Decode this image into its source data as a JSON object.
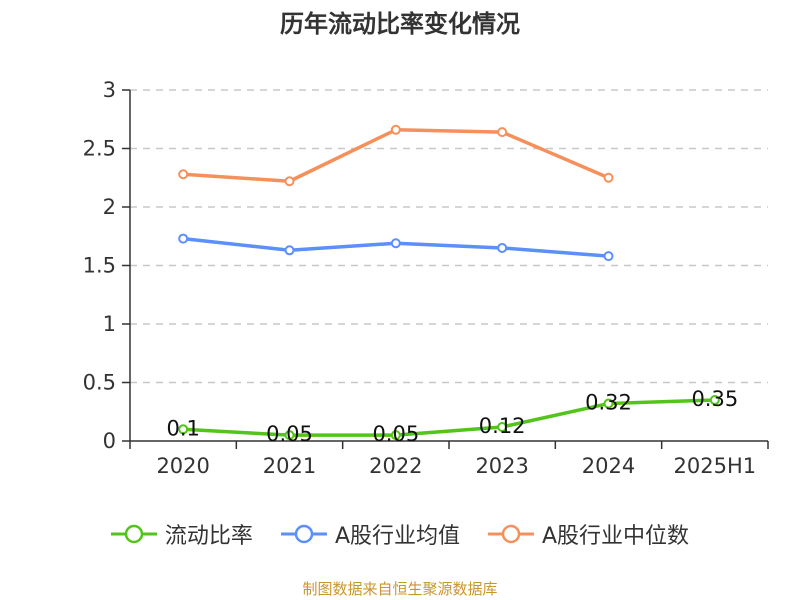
{
  "chart_data": {
    "type": "line",
    "title": "历年流动比率变化情况",
    "categories": [
      "2020",
      "2021",
      "2022",
      "2023",
      "2024",
      "2025H1"
    ],
    "ylim": [
      0,
      3
    ],
    "yticks": [
      0,
      0.5,
      1,
      1.5,
      2,
      2.5,
      3
    ],
    "grid": true,
    "legend_position": "bottom",
    "series": [
      {
        "name": "流动比率",
        "color": "#52c41a",
        "values": [
          0.1,
          0.05,
          0.05,
          0.12,
          0.32,
          0.35
        ],
        "labels": [
          "0.1",
          "0.05",
          "0.05",
          "0.12",
          "0.32",
          "0.35"
        ]
      },
      {
        "name": "A股行业均值",
        "color": "#5b8ff9",
        "values": [
          1.73,
          1.63,
          1.69,
          1.65,
          1.58,
          null
        ]
      },
      {
        "name": "A股行业中位数",
        "color": "#f6905a",
        "values": [
          2.28,
          2.22,
          2.66,
          2.64,
          2.25,
          null
        ]
      }
    ]
  },
  "source_note": "制图数据来自恒生聚源数据库"
}
